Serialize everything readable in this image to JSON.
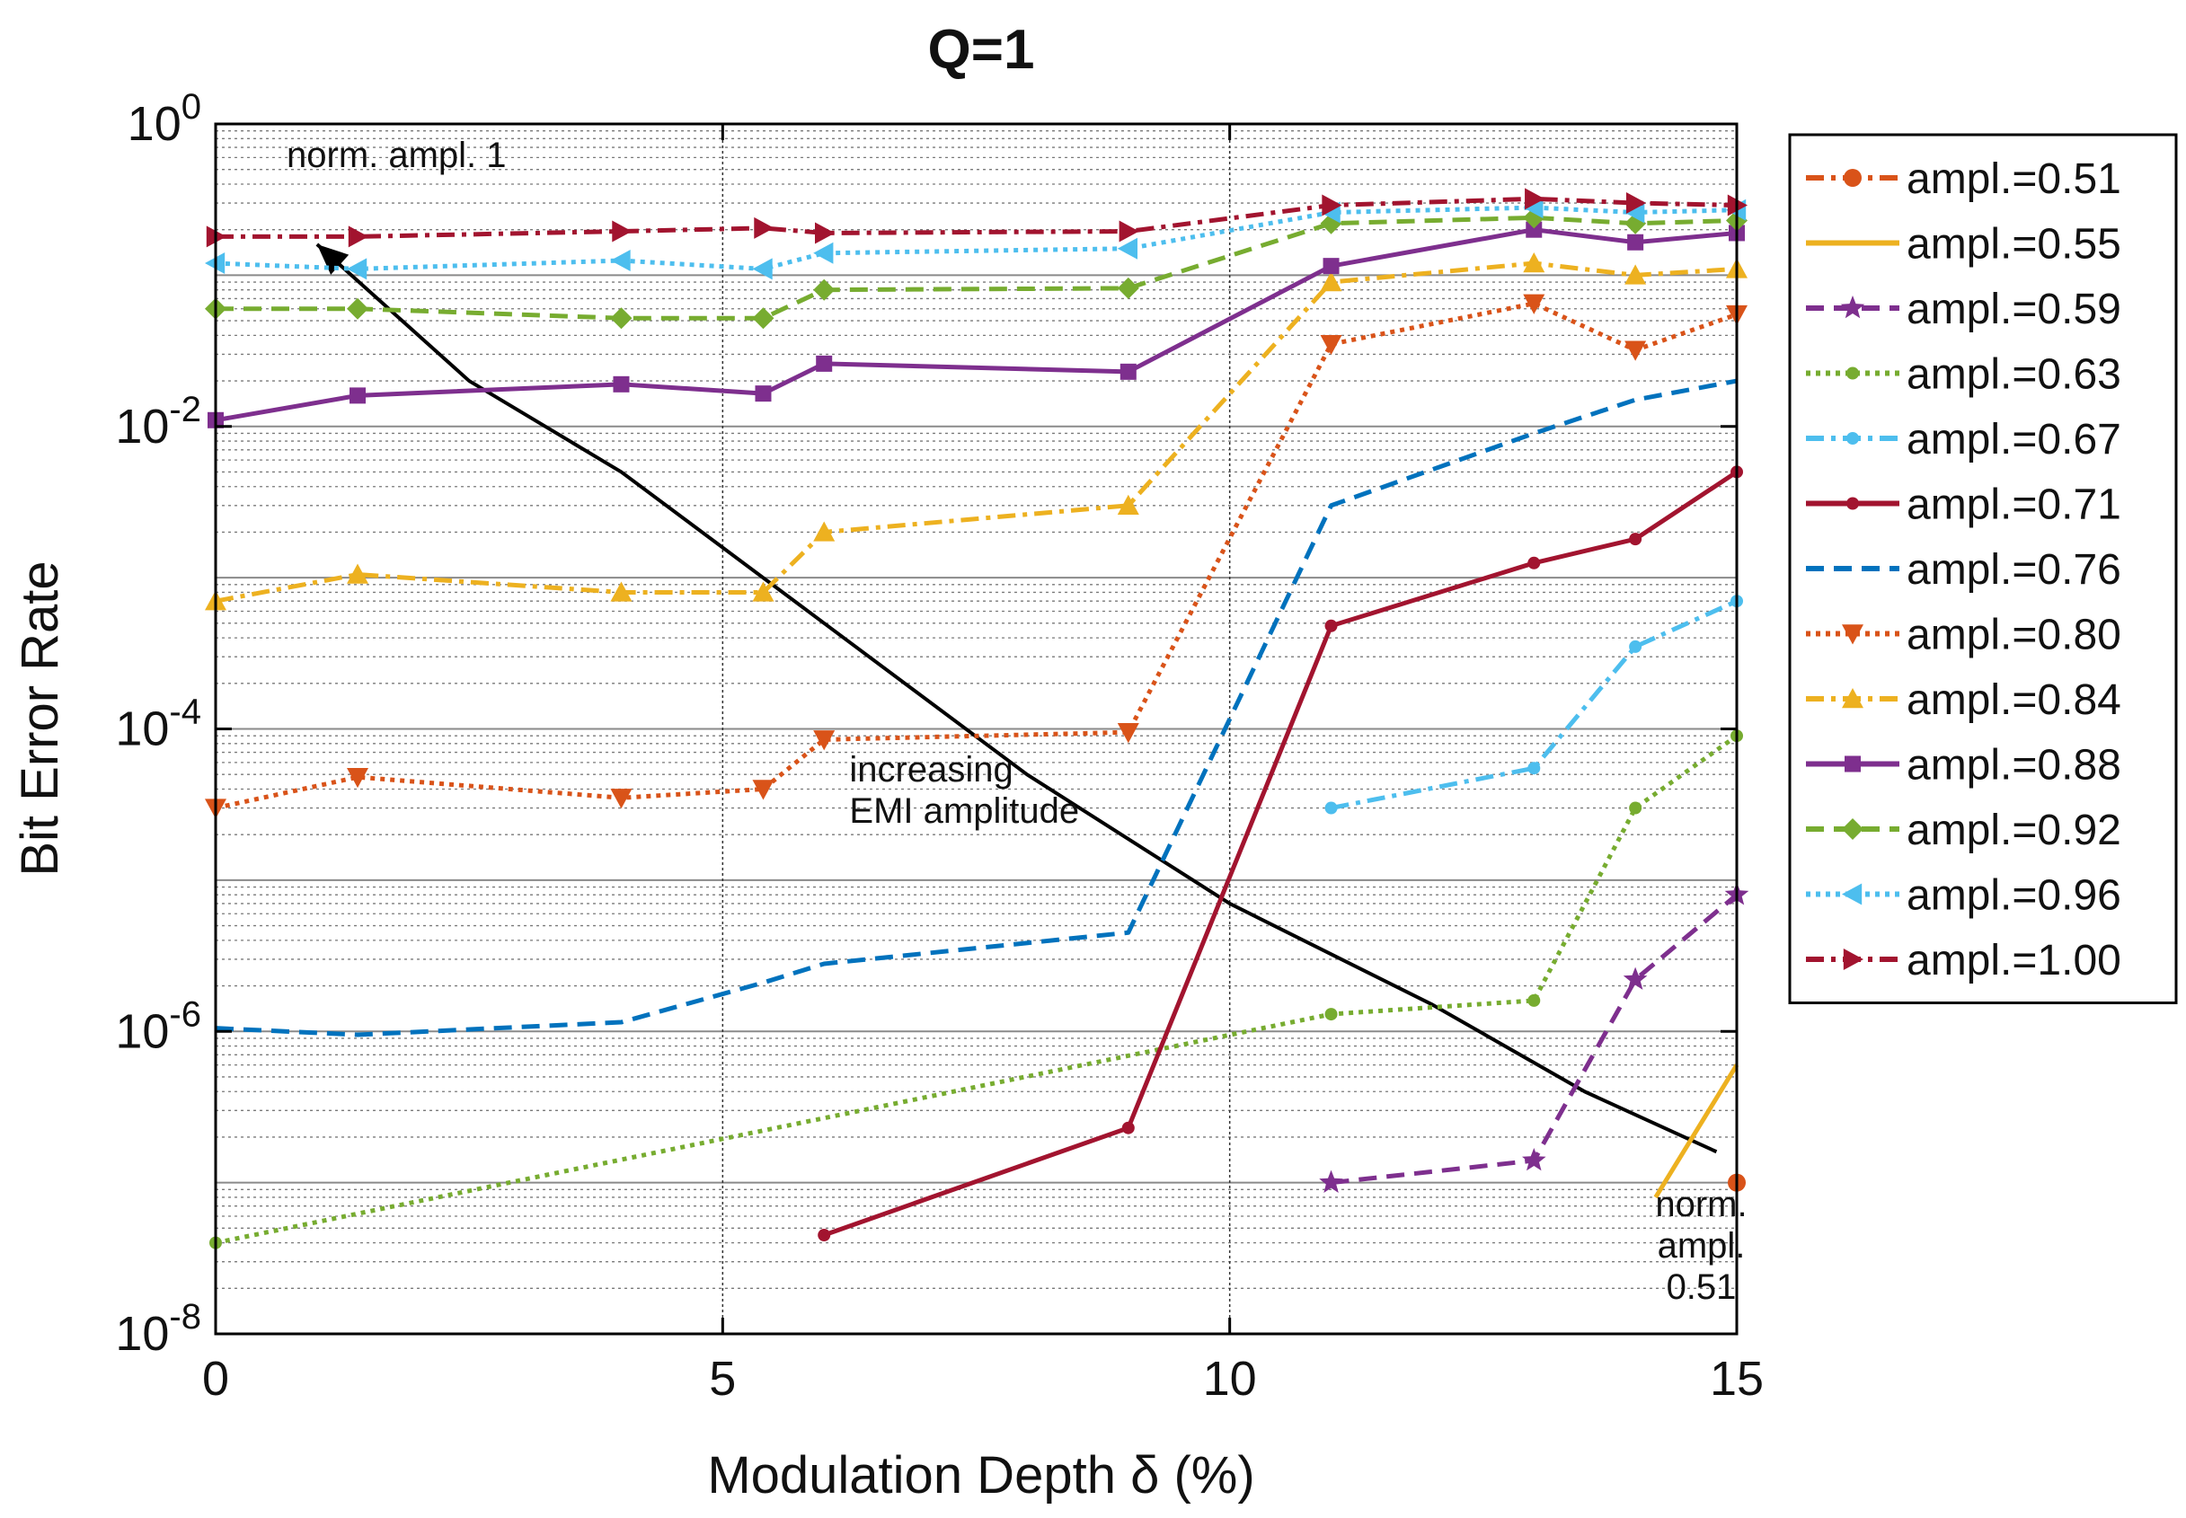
{
  "chart_data": {
    "type": "line",
    "title": "Q=1",
    "xlabel": "Modulation Depth δ (%)",
    "ylabel": "Bit Error Rate",
    "xlim": [
      0,
      15
    ],
    "ylim": [
      1e-08,
      1
    ],
    "yscale": "log",
    "grid": true,
    "legend_position": "outside-right",
    "x_ticks": [
      {
        "value": 0,
        "label": "0"
      },
      {
        "value": 5,
        "label": "5"
      },
      {
        "value": 10,
        "label": "10"
      },
      {
        "value": 15,
        "label": "15"
      }
    ],
    "y_ticks": [
      {
        "value": 1,
        "base": "10",
        "exp": "0"
      },
      {
        "value": 0.01,
        "base": "10",
        "exp": "-2"
      },
      {
        "value": 0.0001,
        "base": "10",
        "exp": "-4"
      },
      {
        "value": 1e-06,
        "base": "10",
        "exp": "-6"
      },
      {
        "value": 1e-08,
        "base": "10",
        "exp": "-8"
      }
    ],
    "series": [
      {
        "name": "ampl.=0.51",
        "color": "#D95319",
        "dash": "dashdot",
        "marker": "circle",
        "points": [
          [
            15,
            1e-07
          ]
        ]
      },
      {
        "name": "ampl.=0.55",
        "color": "#EDB120",
        "dash": "solid",
        "marker": "none",
        "points": [
          [
            14.2,
            8e-08
          ],
          [
            15,
            6e-07
          ]
        ]
      },
      {
        "name": "ampl.=0.59",
        "color": "#7E2F8E",
        "dash": "dashed",
        "marker": "star",
        "points": [
          [
            11,
            1e-07
          ],
          [
            13,
            1.4e-07
          ],
          [
            14,
            2.2e-06
          ],
          [
            15,
            8e-06
          ]
        ]
      },
      {
        "name": "ampl.=0.63",
        "color": "#77AC30",
        "dash": "dotted",
        "marker": "dot",
        "points": [
          [
            0,
            4e-08
          ],
          [
            11,
            1.3e-06
          ],
          [
            13,
            1.6e-06
          ],
          [
            14,
            3e-05
          ],
          [
            15,
            9e-05
          ]
        ]
      },
      {
        "name": "ampl.=0.67",
        "color": "#4DBEEE",
        "dash": "dashdot",
        "marker": "dot",
        "points": [
          [
            11,
            3e-05
          ],
          [
            13,
            5.5e-05
          ],
          [
            14,
            0.00035
          ],
          [
            15,
            0.0007
          ]
        ]
      },
      {
        "name": "ampl.=0.71",
        "color": "#A2142F",
        "dash": "solid",
        "marker": "dot",
        "points": [
          [
            6,
            4.5e-08
          ],
          [
            9,
            2.3e-07
          ],
          [
            11,
            0.00048
          ],
          [
            13,
            0.00125
          ],
          [
            14,
            0.0018
          ],
          [
            15,
            0.005
          ]
        ]
      },
      {
        "name": "ampl.=0.76",
        "color": "#0072BD",
        "dash": "dashed",
        "marker": "none",
        "points": [
          [
            0,
            1.05e-06
          ],
          [
            1.4,
            9.5e-07
          ],
          [
            4,
            1.15e-06
          ],
          [
            5.4,
            2.1e-06
          ],
          [
            6,
            2.8e-06
          ],
          [
            9,
            4.5e-06
          ],
          [
            11,
            0.003
          ],
          [
            13,
            0.009
          ],
          [
            14,
            0.015
          ],
          [
            15,
            0.02
          ]
        ]
      },
      {
        "name": "ampl.=0.80",
        "color": "#D95319",
        "dash": "dotted",
        "marker": "triangle-down",
        "points": [
          [
            0,
            3e-05
          ],
          [
            1.4,
            4.8e-05
          ],
          [
            4,
            3.5e-05
          ],
          [
            5.4,
            4e-05
          ],
          [
            6,
            8.5e-05
          ],
          [
            9,
            9.5e-05
          ],
          [
            11,
            0.035
          ],
          [
            13,
            0.065
          ],
          [
            14,
            0.032
          ],
          [
            15,
            0.055
          ]
        ]
      },
      {
        "name": "ampl.=0.84",
        "color": "#EDB120",
        "dash": "dashdot",
        "marker": "triangle-up",
        "points": [
          [
            0,
            0.0007
          ],
          [
            1.4,
            0.00105
          ],
          [
            4,
            0.0008
          ],
          [
            5.4,
            0.0008
          ],
          [
            6,
            0.002
          ],
          [
            9,
            0.003
          ],
          [
            11,
            0.09
          ],
          [
            13,
            0.12
          ],
          [
            14,
            0.1
          ],
          [
            15,
            0.11
          ]
        ]
      },
      {
        "name": "ampl.=0.88",
        "color": "#7E2F8E",
        "dash": "solid",
        "marker": "square",
        "points": [
          [
            0,
            0.011
          ],
          [
            1.4,
            0.016
          ],
          [
            4,
            0.019
          ],
          [
            5.4,
            0.0165
          ],
          [
            6,
            0.026
          ],
          [
            9,
            0.023
          ],
          [
            11,
            0.115
          ],
          [
            13,
            0.2
          ],
          [
            14,
            0.165
          ],
          [
            15,
            0.19
          ]
        ]
      },
      {
        "name": "ampl.=0.92",
        "color": "#77AC30",
        "dash": "dashed",
        "marker": "diamond",
        "points": [
          [
            0,
            0.06
          ],
          [
            1.4,
            0.06
          ],
          [
            4,
            0.052
          ],
          [
            5.4,
            0.052
          ],
          [
            6,
            0.08
          ],
          [
            9,
            0.082
          ],
          [
            11,
            0.22
          ],
          [
            13,
            0.24
          ],
          [
            14,
            0.22
          ],
          [
            15,
            0.23
          ]
        ]
      },
      {
        "name": "ampl.=0.96",
        "color": "#4DBEEE",
        "dash": "dotted",
        "marker": "triangle-left",
        "points": [
          [
            0,
            0.12
          ],
          [
            1.4,
            0.11
          ],
          [
            4,
            0.125
          ],
          [
            5.4,
            0.11
          ],
          [
            6,
            0.14
          ],
          [
            9,
            0.15
          ],
          [
            11,
            0.26
          ],
          [
            13,
            0.28
          ],
          [
            14,
            0.26
          ],
          [
            15,
            0.27
          ]
        ]
      },
      {
        "name": "ampl.=1.00",
        "color": "#A2142F",
        "dash": "dashdot",
        "marker": "triangle-right",
        "points": [
          [
            0,
            0.18
          ],
          [
            1.4,
            0.18
          ],
          [
            4,
            0.195
          ],
          [
            5.4,
            0.205
          ],
          [
            6,
            0.19
          ],
          [
            9,
            0.195
          ],
          [
            11,
            0.29
          ],
          [
            13,
            0.32
          ],
          [
            14,
            0.3
          ],
          [
            15,
            0.29
          ]
        ]
      }
    ],
    "annotations": [
      {
        "id": "norm-ampl-1",
        "lines": [
          "norm. ampl. 1"
        ],
        "x": 0.7,
        "y": 0.52,
        "anchor": "start"
      },
      {
        "id": "increasing-emi",
        "lines": [
          "increasing",
          "EMI amplitude"
        ],
        "x": 6.25,
        "y": 4.5e-05,
        "anchor": "start"
      },
      {
        "id": "norm-ampl-051",
        "lines": [
          "norm.",
          "ampl.",
          "0.51"
        ],
        "x": 14.65,
        "y": 6e-08,
        "anchor": "middle"
      }
    ],
    "arrow": {
      "label": "increasing EMI amplitude",
      "points": [
        [
          14.8,
          1.6e-07
        ],
        [
          13.5,
          4e-07
        ],
        [
          12,
          1.5e-06
        ],
        [
          10,
          7e-06
        ],
        [
          8,
          5e-05
        ],
        [
          6,
          0.0005
        ],
        [
          4,
          0.005
        ],
        [
          2.5,
          0.02
        ],
        [
          1,
          0.16
        ]
      ]
    }
  }
}
